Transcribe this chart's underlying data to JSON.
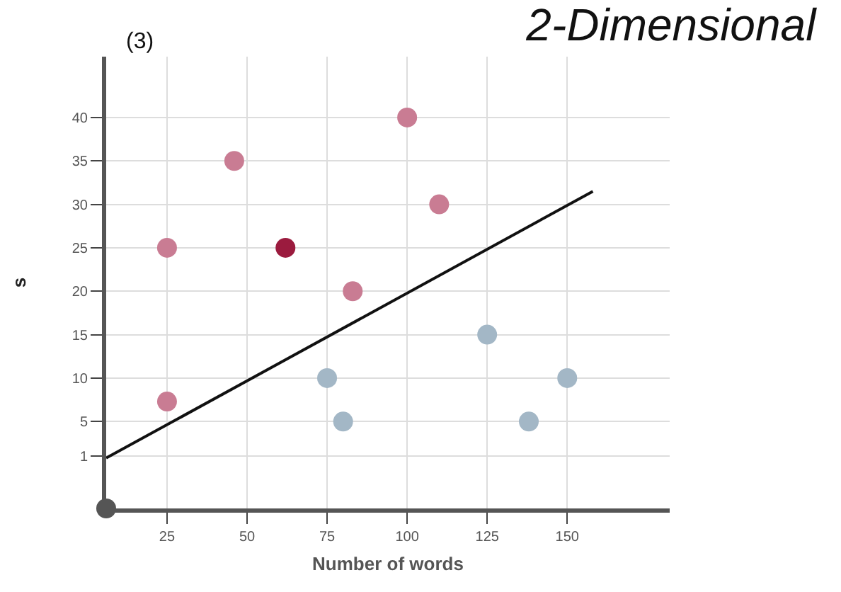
{
  "chart_data": {
    "type": "scatter",
    "title": "2-Dimensional",
    "xlabel": "Number of words",
    "ylabel": "s",
    "annotations": [
      "(3)"
    ],
    "xlim": [
      6,
      182
    ],
    "ylim": [
      -5,
      47
    ],
    "xticks": [
      25,
      50,
      75,
      100,
      125,
      150
    ],
    "yticks": [
      1,
      5,
      10,
      15,
      20,
      25,
      30,
      35,
      40
    ],
    "grid": true,
    "marker": "circle",
    "series": [
      {
        "color": "#c97c93",
        "x": [
          25,
          46,
          100,
          83,
          25,
          110
        ],
        "values": [
          25,
          35,
          40,
          20,
          7.3,
          30
        ]
      },
      {
        "color": "#9b1b3e",
        "x": [
          62
        ],
        "values": [
          25
        ]
      },
      {
        "color": "#a3b7c6",
        "x": [
          75,
          80,
          125,
          150,
          138
        ],
        "values": [
          10,
          5,
          15,
          10,
          5
        ]
      },
      {
        "type": "line",
        "color": "#111111",
        "x": [
          6,
          158
        ],
        "values": [
          0.8,
          31.5
        ],
        "line_style": "solid",
        "marker": "none"
      },
      {
        "color": "#555555",
        "x": [
          6
        ],
        "values": [
          -5
        ]
      }
    ]
  }
}
